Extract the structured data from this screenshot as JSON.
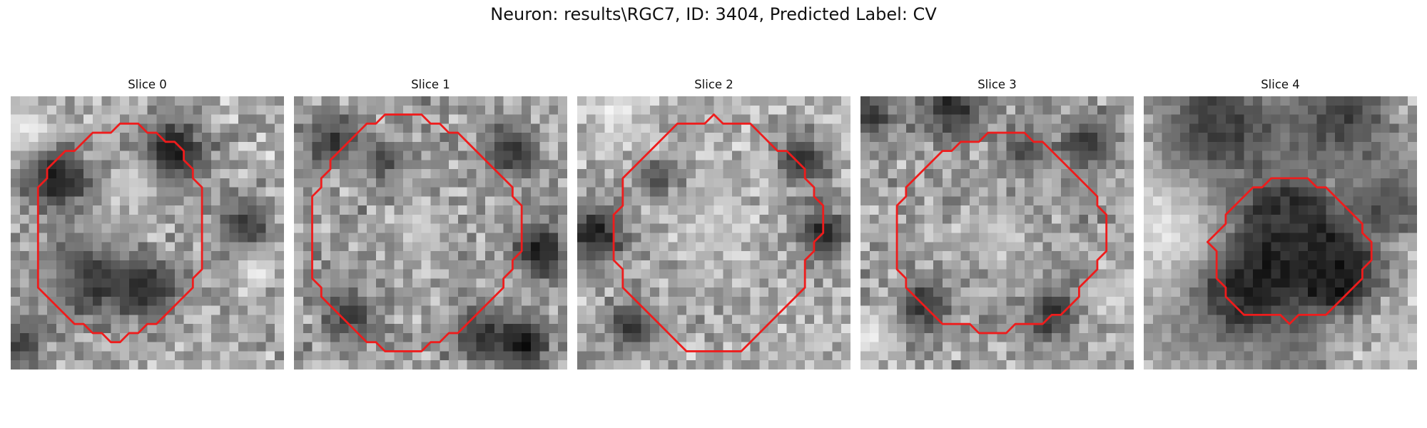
{
  "figure": {
    "title": "Neuron: results\\RGC7, ID: 3404, Predicted Label: CV"
  },
  "contour_color": "#ee1c1c",
  "panels": [
    {
      "title": "Slice 0",
      "contour": [
        [
          13,
          3
        ],
        [
          14,
          3
        ],
        [
          15,
          4
        ],
        [
          16,
          4
        ],
        [
          17,
          5
        ],
        [
          18,
          5
        ],
        [
          19,
          6
        ],
        [
          19,
          7
        ],
        [
          20,
          8
        ],
        [
          20,
          9
        ],
        [
          21,
          10
        ],
        [
          21,
          19
        ],
        [
          20,
          20
        ],
        [
          20,
          21
        ],
        [
          19,
          22
        ],
        [
          18,
          23
        ],
        [
          17,
          24
        ],
        [
          16,
          25
        ],
        [
          15,
          25
        ],
        [
          14,
          26
        ],
        [
          13,
          26
        ],
        [
          12,
          27
        ],
        [
          11,
          27
        ],
        [
          10,
          26
        ],
        [
          9,
          26
        ],
        [
          8,
          25
        ],
        [
          7,
          25
        ],
        [
          6,
          24
        ],
        [
          5,
          23
        ],
        [
          4,
          22
        ],
        [
          3,
          21
        ],
        [
          3,
          10
        ],
        [
          4,
          9
        ],
        [
          4,
          8
        ],
        [
          5,
          7
        ],
        [
          6,
          6
        ],
        [
          7,
          6
        ],
        [
          8,
          5
        ],
        [
          9,
          4
        ],
        [
          10,
          4
        ],
        [
          11,
          4
        ],
        [
          12,
          3
        ]
      ],
      "blobs": [
        [
          5,
          9,
          2.5,
          20
        ],
        [
          18,
          6,
          2.5,
          25
        ],
        [
          8,
          20,
          3,
          40
        ],
        [
          15,
          21,
          2.5,
          45
        ],
        [
          14,
          9,
          1.8,
          215
        ],
        [
          10,
          15,
          2,
          185
        ],
        [
          5,
          20,
          2,
          190
        ],
        [
          2,
          4,
          2,
          235
        ],
        [
          26,
          14,
          2,
          60
        ],
        [
          27,
          19,
          1.5,
          235
        ],
        [
          1,
          27,
          2,
          70
        ]
      ],
      "base": 170
    },
    {
      "title": "Slice 1",
      "contour": [
        [
          10,
          2
        ],
        [
          11,
          2
        ],
        [
          12,
          2
        ],
        [
          13,
          2
        ],
        [
          14,
          2
        ],
        [
          15,
          3
        ],
        [
          16,
          3
        ],
        [
          17,
          4
        ],
        [
          18,
          4
        ],
        [
          19,
          5
        ],
        [
          20,
          6
        ],
        [
          21,
          7
        ],
        [
          22,
          8
        ],
        [
          23,
          9
        ],
        [
          24,
          10
        ],
        [
          24,
          11
        ],
        [
          25,
          12
        ],
        [
          25,
          17
        ],
        [
          24,
          18
        ],
        [
          24,
          19
        ],
        [
          23,
          20
        ],
        [
          23,
          21
        ],
        [
          22,
          22
        ],
        [
          21,
          23
        ],
        [
          20,
          24
        ],
        [
          19,
          25
        ],
        [
          18,
          26
        ],
        [
          17,
          26
        ],
        [
          16,
          27
        ],
        [
          15,
          27
        ],
        [
          14,
          28
        ],
        [
          13,
          28
        ],
        [
          12,
          28
        ],
        [
          11,
          28
        ],
        [
          10,
          28
        ],
        [
          9,
          27
        ],
        [
          8,
          27
        ],
        [
          7,
          26
        ],
        [
          6,
          25
        ],
        [
          5,
          24
        ],
        [
          4,
          23
        ],
        [
          3,
          22
        ],
        [
          3,
          21
        ],
        [
          2,
          20
        ],
        [
          2,
          11
        ],
        [
          3,
          10
        ],
        [
          3,
          9
        ],
        [
          4,
          8
        ],
        [
          4,
          7
        ],
        [
          5,
          6
        ],
        [
          6,
          5
        ],
        [
          7,
          4
        ],
        [
          8,
          3
        ],
        [
          9,
          3
        ]
      ],
      "blobs": [
        [
          4,
          5,
          2,
          55
        ],
        [
          24,
          6,
          2,
          50
        ],
        [
          27,
          17,
          2,
          25
        ],
        [
          25,
          27,
          2,
          20
        ],
        [
          10,
          7,
          1.5,
          70
        ],
        [
          14,
          14,
          2,
          200
        ],
        [
          6,
          24,
          2,
          60
        ],
        [
          20,
          26,
          2,
          60
        ]
      ],
      "base": 160
    },
    {
      "title": "Slice 2",
      "contour": [
        [
          15,
          2
        ],
        [
          16,
          3
        ],
        [
          17,
          3
        ],
        [
          18,
          3
        ],
        [
          19,
          3
        ],
        [
          20,
          4
        ],
        [
          21,
          5
        ],
        [
          22,
          6
        ],
        [
          23,
          6
        ],
        [
          24,
          7
        ],
        [
          25,
          8
        ],
        [
          25,
          9
        ],
        [
          26,
          10
        ],
        [
          26,
          11
        ],
        [
          27,
          12
        ],
        [
          27,
          15
        ],
        [
          26,
          16
        ],
        [
          26,
          17
        ],
        [
          25,
          18
        ],
        [
          25,
          21
        ],
        [
          24,
          22
        ],
        [
          23,
          23
        ],
        [
          22,
          24
        ],
        [
          21,
          25
        ],
        [
          20,
          26
        ],
        [
          19,
          27
        ],
        [
          18,
          28
        ],
        [
          17,
          28
        ],
        [
          16,
          28
        ],
        [
          15,
          28
        ],
        [
          14,
          28
        ],
        [
          13,
          28
        ],
        [
          12,
          28
        ],
        [
          11,
          27
        ],
        [
          10,
          26
        ],
        [
          9,
          25
        ],
        [
          8,
          24
        ],
        [
          7,
          23
        ],
        [
          6,
          22
        ],
        [
          5,
          21
        ],
        [
          5,
          19
        ],
        [
          4,
          18
        ],
        [
          4,
          13
        ],
        [
          5,
          12
        ],
        [
          5,
          9
        ],
        [
          6,
          8
        ],
        [
          7,
          7
        ],
        [
          8,
          6
        ],
        [
          9,
          5
        ],
        [
          10,
          4
        ],
        [
          11,
          3
        ],
        [
          12,
          3
        ],
        [
          13,
          3
        ],
        [
          14,
          3
        ]
      ],
      "blobs": [
        [
          2,
          15,
          2.5,
          35
        ],
        [
          25,
          7,
          2,
          45
        ],
        [
          27,
          15,
          2,
          40
        ],
        [
          6,
          25,
          2,
          60
        ],
        [
          9,
          9,
          1.5,
          80
        ],
        [
          15,
          14,
          2.5,
          205
        ],
        [
          4,
          2,
          2,
          230
        ]
      ],
      "base": 175
    },
    {
      "title": "Slice 3",
      "contour": [
        [
          14,
          4
        ],
        [
          15,
          4
        ],
        [
          16,
          4
        ],
        [
          17,
          4
        ],
        [
          18,
          4
        ],
        [
          19,
          5
        ],
        [
          20,
          5
        ],
        [
          21,
          6
        ],
        [
          22,
          7
        ],
        [
          23,
          8
        ],
        [
          24,
          9
        ],
        [
          25,
          10
        ],
        [
          26,
          11
        ],
        [
          26,
          12
        ],
        [
          27,
          13
        ],
        [
          27,
          17
        ],
        [
          26,
          18
        ],
        [
          26,
          19
        ],
        [
          25,
          20
        ],
        [
          24,
          21
        ],
        [
          24,
          22
        ],
        [
          23,
          23
        ],
        [
          22,
          24
        ],
        [
          21,
          24
        ],
        [
          20,
          25
        ],
        [
          19,
          25
        ],
        [
          18,
          25
        ],
        [
          17,
          25
        ],
        [
          16,
          26
        ],
        [
          15,
          26
        ],
        [
          14,
          26
        ],
        [
          13,
          26
        ],
        [
          12,
          25
        ],
        [
          11,
          25
        ],
        [
          10,
          25
        ],
        [
          9,
          25
        ],
        [
          8,
          24
        ],
        [
          7,
          23
        ],
        [
          6,
          22
        ],
        [
          5,
          21
        ],
        [
          5,
          20
        ],
        [
          4,
          19
        ],
        [
          4,
          12
        ],
        [
          5,
          11
        ],
        [
          5,
          10
        ],
        [
          6,
          9
        ],
        [
          7,
          8
        ],
        [
          8,
          7
        ],
        [
          9,
          6
        ],
        [
          10,
          6
        ],
        [
          11,
          5
        ],
        [
          12,
          5
        ],
        [
          13,
          5
        ]
      ],
      "blobs": [
        [
          10,
          1,
          2.5,
          40
        ],
        [
          1,
          2,
          2,
          55
        ],
        [
          25,
          5,
          2,
          60
        ],
        [
          7,
          23,
          2,
          45
        ],
        [
          21,
          24,
          2,
          55
        ],
        [
          18,
          6,
          1.5,
          60
        ],
        [
          15,
          15,
          2.5,
          195
        ],
        [
          28,
          22,
          2,
          210
        ],
        [
          1,
          26,
          2,
          225
        ]
      ],
      "base": 160
    },
    {
      "title": "Slice 4",
      "contour": [
        [
          14,
          9
        ],
        [
          15,
          9
        ],
        [
          16,
          9
        ],
        [
          17,
          9
        ],
        [
          18,
          9
        ],
        [
          19,
          10
        ],
        [
          20,
          10
        ],
        [
          21,
          11
        ],
        [
          22,
          12
        ],
        [
          23,
          13
        ],
        [
          24,
          14
        ],
        [
          24,
          15
        ],
        [
          25,
          16
        ],
        [
          25,
          18
        ],
        [
          24,
          19
        ],
        [
          24,
          20
        ],
        [
          23,
          21
        ],
        [
          22,
          22
        ],
        [
          21,
          23
        ],
        [
          20,
          24
        ],
        [
          19,
          24
        ],
        [
          18,
          24
        ],
        [
          17,
          24
        ],
        [
          16,
          25
        ],
        [
          15,
          24
        ],
        [
          14,
          24
        ],
        [
          13,
          24
        ],
        [
          12,
          24
        ],
        [
          11,
          24
        ],
        [
          10,
          23
        ],
        [
          9,
          22
        ],
        [
          9,
          21
        ],
        [
          8,
          20
        ],
        [
          8,
          18
        ],
        [
          8,
          17
        ],
        [
          7,
          16
        ],
        [
          8,
          15
        ],
        [
          9,
          14
        ],
        [
          9,
          13
        ],
        [
          10,
          12
        ],
        [
          11,
          11
        ],
        [
          12,
          10
        ],
        [
          13,
          10
        ]
      ],
      "blobs": [
        [
          16,
          17,
          5,
          25
        ],
        [
          16,
          14,
          2.5,
          75
        ],
        [
          10,
          22,
          2.5,
          20
        ],
        [
          22,
          20,
          2.5,
          30
        ],
        [
          8,
          3,
          5,
          60
        ],
        [
          22,
          2,
          4,
          65
        ],
        [
          2,
          14,
          4,
          230
        ],
        [
          5,
          26,
          4,
          140
        ],
        [
          27,
          12,
          3,
          90
        ],
        [
          16,
          28,
          3,
          120
        ],
        [
          29,
          27,
          2,
          200
        ]
      ],
      "base": 185
    }
  ]
}
